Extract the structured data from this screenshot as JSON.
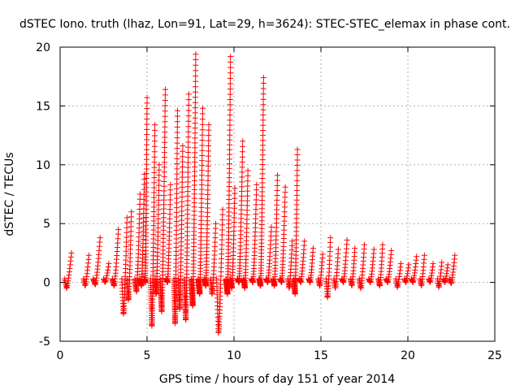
{
  "chart_data": {
    "type": "scatter",
    "title": "dSTEC Iono. truth (lhaz, Lon=91, Lat=29, h=3624): STEC-STEC_elemax in phase cont.",
    "xlabel": "GPS time / hours of day 151 of year 2014",
    "ylabel": "dSTEC  / TECUs",
    "xlim": [
      0,
      25
    ],
    "ylim": [
      -5,
      20
    ],
    "x_ticks": [
      0,
      5,
      10,
      15,
      20,
      25
    ],
    "y_ticks": [
      -5,
      0,
      5,
      10,
      15,
      20
    ],
    "x_tick_labels": [
      "0",
      "5",
      "10",
      "15",
      "20",
      "25"
    ],
    "y_tick_labels": [
      "-5",
      "0",
      "5",
      "10",
      "15",
      "20"
    ],
    "grid": true,
    "marker": "+",
    "color": "#ff0000",
    "arcs": [
      {
        "t0": 0.25,
        "t1": 0.65,
        "min": -0.5,
        "max": 2.5
      },
      {
        "t0": 1.35,
        "t1": 1.65,
        "min": -0.3,
        "max": 2.3
      },
      {
        "t0": 1.9,
        "t1": 2.3,
        "min": -0.2,
        "max": 3.8
      },
      {
        "t0": 2.5,
        "t1": 2.8,
        "min": 0.0,
        "max": 1.6
      },
      {
        "t0": 3.0,
        "t1": 3.35,
        "min": -0.3,
        "max": 4.5
      },
      {
        "t0": 3.55,
        "t1": 3.85,
        "min": -2.7,
        "max": 5.5
      },
      {
        "t0": 3.85,
        "t1": 4.1,
        "min": -1.5,
        "max": 6.0
      },
      {
        "t0": 4.3,
        "t1": 4.6,
        "min": -0.8,
        "max": 7.5
      },
      {
        "t0": 4.6,
        "t1": 4.85,
        "min": -0.3,
        "max": 9.2
      },
      {
        "t0": 4.85,
        "t1": 5.0,
        "min": 0.0,
        "max": 15.7
      },
      {
        "t0": 5.2,
        "t1": 5.45,
        "min": -3.7,
        "max": 13.4
      },
      {
        "t0": 5.45,
        "t1": 5.7,
        "min": -1.0,
        "max": 10.0
      },
      {
        "t0": 5.75,
        "t1": 6.05,
        "min": -2.5,
        "max": 16.4
      },
      {
        "t0": 6.1,
        "t1": 6.35,
        "min": 0.0,
        "max": 8.3
      },
      {
        "t0": 6.55,
        "t1": 6.75,
        "min": -3.5,
        "max": 14.6
      },
      {
        "t0": 6.8,
        "t1": 7.05,
        "min": -2.3,
        "max": 11.6
      },
      {
        "t0": 7.15,
        "t1": 7.4,
        "min": -3.2,
        "max": 16.0
      },
      {
        "t0": 7.55,
        "t1": 7.8,
        "min": -2.0,
        "max": 19.4
      },
      {
        "t0": 7.95,
        "t1": 8.2,
        "min": -1.0,
        "max": 14.8
      },
      {
        "t0": 8.3,
        "t1": 8.55,
        "min": -0.3,
        "max": 13.4
      },
      {
        "t0": 8.65,
        "t1": 8.95,
        "min": -1.0,
        "max": 5.0
      },
      {
        "t0": 9.0,
        "t1": 9.35,
        "min": -4.3,
        "max": 6.2
      },
      {
        "t0": 9.55,
        "t1": 9.8,
        "min": -1.0,
        "max": 19.2
      },
      {
        "t0": 9.8,
        "t1": 10.05,
        "min": -0.5,
        "max": 8.0
      },
      {
        "t0": 10.2,
        "t1": 10.5,
        "min": 0.0,
        "max": 12.0
      },
      {
        "t0": 10.55,
        "t1": 10.8,
        "min": -0.5,
        "max": 9.5
      },
      {
        "t0": 11.0,
        "t1": 11.3,
        "min": 0.0,
        "max": 8.3
      },
      {
        "t0": 11.45,
        "t1": 11.7,
        "min": -0.3,
        "max": 17.4
      },
      {
        "t0": 11.85,
        "t1": 12.15,
        "min": 0.0,
        "max": 4.7
      },
      {
        "t0": 12.25,
        "t1": 12.5,
        "min": -0.3,
        "max": 9.1
      },
      {
        "t0": 12.65,
        "t1": 12.95,
        "min": 0.0,
        "max": 8.1
      },
      {
        "t0": 13.1,
        "t1": 13.35,
        "min": -0.5,
        "max": 3.5
      },
      {
        "t0": 13.45,
        "t1": 13.65,
        "min": -1.0,
        "max": 11.3
      },
      {
        "t0": 13.75,
        "t1": 14.05,
        "min": 0.0,
        "max": 3.5
      },
      {
        "t0": 14.3,
        "t1": 14.55,
        "min": 0.0,
        "max": 2.9
      },
      {
        "t0": 14.85,
        "t1": 15.1,
        "min": -0.3,
        "max": 2.4
      },
      {
        "t0": 15.3,
        "t1": 15.55,
        "min": -1.3,
        "max": 3.8
      },
      {
        "t0": 15.75,
        "t1": 16.0,
        "min": -0.5,
        "max": 2.8
      },
      {
        "t0": 16.2,
        "t1": 16.5,
        "min": 0.0,
        "max": 3.6
      },
      {
        "t0": 16.7,
        "t1": 16.95,
        "min": -0.3,
        "max": 2.9
      },
      {
        "t0": 17.2,
        "t1": 17.5,
        "min": -0.5,
        "max": 3.2
      },
      {
        "t0": 17.75,
        "t1": 18.05,
        "min": 0.0,
        "max": 2.8
      },
      {
        "t0": 18.3,
        "t1": 18.55,
        "min": -0.3,
        "max": 3.2
      },
      {
        "t0": 18.75,
        "t1": 19.05,
        "min": 0.0,
        "max": 2.7
      },
      {
        "t0": 19.3,
        "t1": 19.6,
        "min": -0.4,
        "max": 1.6
      },
      {
        "t0": 19.8,
        "t1": 20.05,
        "min": 0.0,
        "max": 1.5
      },
      {
        "t0": 20.2,
        "t1": 20.5,
        "min": 0.0,
        "max": 2.2
      },
      {
        "t0": 20.7,
        "t1": 20.95,
        "min": -0.3,
        "max": 2.3
      },
      {
        "t0": 21.2,
        "t1": 21.45,
        "min": 0.0,
        "max": 1.6
      },
      {
        "t0": 21.7,
        "t1": 21.95,
        "min": -0.4,
        "max": 1.7
      },
      {
        "t0": 22.05,
        "t1": 22.3,
        "min": 0.0,
        "max": 1.5
      },
      {
        "t0": 22.4,
        "t1": 22.7,
        "min": -0.1,
        "max": 2.3
      }
    ]
  }
}
